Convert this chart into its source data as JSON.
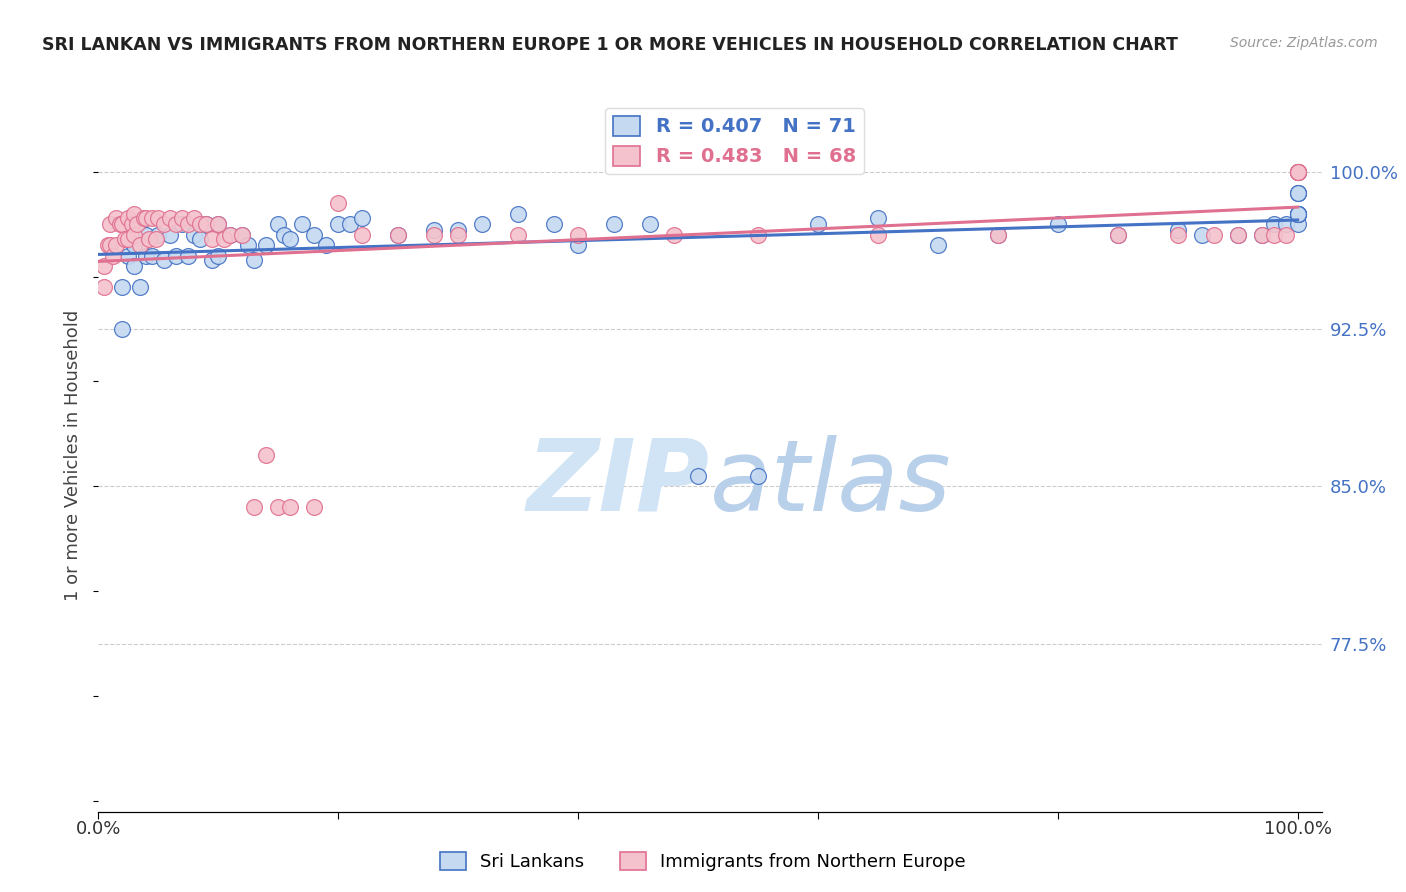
{
  "title": "SRI LANKAN VS IMMIGRANTS FROM NORTHERN EUROPE 1 OR MORE VEHICLES IN HOUSEHOLD CORRELATION CHART",
  "source": "Source: ZipAtlas.com",
  "ylabel": "1 or more Vehicles in Household",
  "ytick_labels": [
    "100.0%",
    "92.5%",
    "85.0%",
    "77.5%"
  ],
  "ytick_values": [
    1.0,
    0.925,
    0.85,
    0.775
  ],
  "xlim": [
    0.0,
    1.02
  ],
  "ylim": [
    0.695,
    1.035
  ],
  "legend_blue_r": "R = 0.407",
  "legend_blue_n": "N = 71",
  "legend_pink_r": "R = 0.483",
  "legend_pink_n": "N = 68",
  "blue_fill": "#c5d9f0",
  "blue_edge": "#4472c4",
  "pink_fill": "#f4c2cc",
  "pink_edge": "#e07090",
  "grid_color": "#cccccc",
  "blue_scatter_x": [
    0.02,
    0.02,
    0.025,
    0.03,
    0.03,
    0.035,
    0.04,
    0.04,
    0.045,
    0.05,
    0.055,
    0.06,
    0.065,
    0.07,
    0.075,
    0.08,
    0.085,
    0.09,
    0.095,
    0.1,
    0.1,
    0.11,
    0.12,
    0.125,
    0.13,
    0.14,
    0.15,
    0.155,
    0.16,
    0.17,
    0.18,
    0.19,
    0.2,
    0.21,
    0.22,
    0.25,
    0.28,
    0.3,
    0.32,
    0.35,
    0.38,
    0.4,
    0.43,
    0.46,
    0.5,
    0.55,
    0.6,
    0.65,
    0.7,
    0.75,
    0.8,
    0.85,
    0.9,
    0.92,
    0.95,
    0.97,
    0.98,
    0.99,
    1.0,
    1.0,
    1.0,
    1.0,
    1.0,
    1.0,
    1.0,
    1.0,
    1.0,
    1.0,
    1.0,
    1.0,
    1.0
  ],
  "blue_scatter_y": [
    0.945,
    0.925,
    0.96,
    0.965,
    0.955,
    0.945,
    0.97,
    0.96,
    0.96,
    0.97,
    0.958,
    0.97,
    0.96,
    0.975,
    0.96,
    0.97,
    0.968,
    0.975,
    0.958,
    0.975,
    0.96,
    0.97,
    0.97,
    0.965,
    0.958,
    0.965,
    0.975,
    0.97,
    0.968,
    0.975,
    0.97,
    0.965,
    0.975,
    0.975,
    0.978,
    0.97,
    0.972,
    0.972,
    0.975,
    0.98,
    0.975,
    0.965,
    0.975,
    0.975,
    0.855,
    0.855,
    0.975,
    0.978,
    0.965,
    0.97,
    0.975,
    0.97,
    0.972,
    0.97,
    0.97,
    0.97,
    0.975,
    0.975,
    0.98,
    0.98,
    0.975,
    0.98,
    0.98,
    0.98,
    0.98,
    0.98,
    0.99,
    0.99,
    0.99,
    1.0,
    1.0
  ],
  "pink_scatter_x": [
    0.005,
    0.005,
    0.008,
    0.01,
    0.01,
    0.012,
    0.015,
    0.015,
    0.018,
    0.02,
    0.022,
    0.025,
    0.025,
    0.028,
    0.03,
    0.03,
    0.032,
    0.035,
    0.038,
    0.04,
    0.042,
    0.045,
    0.048,
    0.05,
    0.055,
    0.06,
    0.065,
    0.07,
    0.075,
    0.08,
    0.085,
    0.09,
    0.095,
    0.1,
    0.105,
    0.11,
    0.12,
    0.13,
    0.14,
    0.15,
    0.16,
    0.18,
    0.2,
    0.22,
    0.25,
    0.28,
    0.3,
    0.35,
    0.4,
    0.48,
    0.55,
    0.65,
    0.75,
    0.85,
    0.9,
    0.93,
    0.95,
    0.97,
    0.98,
    0.99,
    1.0,
    1.0,
    1.0,
    1.0,
    1.0,
    1.0,
    1.0,
    1.0
  ],
  "pink_scatter_y": [
    0.955,
    0.945,
    0.965,
    0.975,
    0.965,
    0.96,
    0.978,
    0.965,
    0.975,
    0.975,
    0.968,
    0.978,
    0.968,
    0.975,
    0.98,
    0.97,
    0.975,
    0.965,
    0.978,
    0.978,
    0.968,
    0.978,
    0.968,
    0.978,
    0.975,
    0.978,
    0.975,
    0.978,
    0.975,
    0.978,
    0.975,
    0.975,
    0.968,
    0.975,
    0.968,
    0.97,
    0.97,
    0.84,
    0.865,
    0.84,
    0.84,
    0.84,
    0.985,
    0.97,
    0.97,
    0.97,
    0.97,
    0.97,
    0.97,
    0.97,
    0.97,
    0.97,
    0.97,
    0.97,
    0.97,
    0.97,
    0.97,
    0.97,
    0.97,
    0.97,
    1.0,
    1.0,
    1.0,
    1.0,
    1.0,
    1.0,
    1.0,
    1.0
  ]
}
